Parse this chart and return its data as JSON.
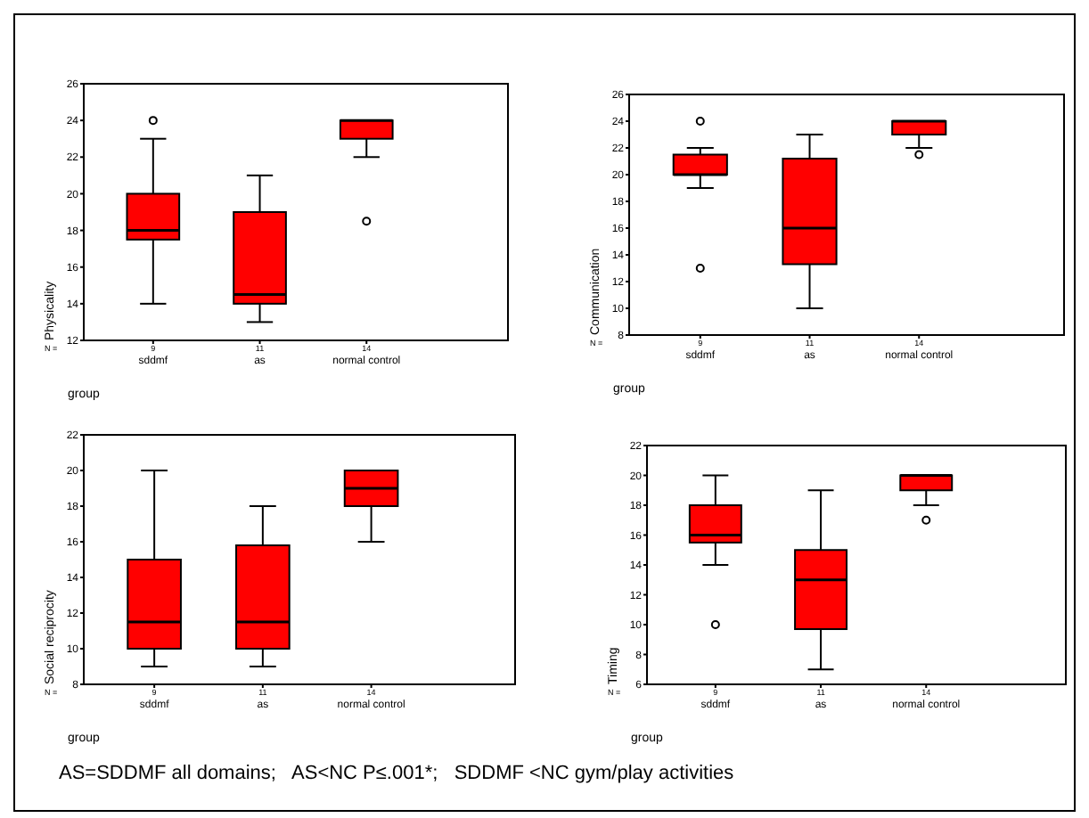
{
  "chart_data": [
    {
      "type": "box",
      "xlabel": "group",
      "ylabel": "Physicality",
      "categories": [
        "sddmf",
        "as",
        "normal control"
      ],
      "color": "#ff0000",
      "ylim": [
        12,
        26
      ],
      "yticks": [
        12,
        14,
        16,
        18,
        20,
        22,
        24,
        26
      ],
      "boxes": [
        {
          "low": 14,
          "q1": 17.5,
          "median": 18,
          "q3": 20,
          "high": 23,
          "outliers": [
            24
          ]
        },
        {
          "low": 13,
          "q1": 14,
          "median": 14.5,
          "q3": 19,
          "high": 21
        },
        {
          "low": 22,
          "q1": 23,
          "median": 24,
          "q3": 24,
          "high": 24,
          "outliers": [
            18.5
          ]
        }
      ],
      "annotations": [
        "N =",
        "9",
        "11",
        "14"
      ]
    },
    {
      "type": "box",
      "xlabel": "group",
      "ylabel": "Communication",
      "categories": [
        "sddmf",
        "as",
        "normal control"
      ],
      "color": "#ff0000",
      "ylim": [
        8,
        26
      ],
      "yticks": [
        8,
        10,
        12,
        14,
        16,
        18,
        20,
        22,
        24,
        26
      ],
      "boxes": [
        {
          "low": 19,
          "q1": 20,
          "median": 20,
          "q3": 21.5,
          "high": 22,
          "outliers": [
            24,
            13
          ]
        },
        {
          "low": 10,
          "q1": 13.3,
          "median": 16,
          "q3": 21.2,
          "high": 23
        },
        {
          "low": 22,
          "q1": 23,
          "median": 24,
          "q3": 24,
          "high": 24,
          "outliers": [
            21.5
          ]
        }
      ],
      "annotations": [
        "N =",
        "9",
        "11",
        "14"
      ]
    },
    {
      "type": "box",
      "xlabel": "group",
      "ylabel": "Social reciprocity",
      "categories": [
        "sddmf",
        "as",
        "normal control"
      ],
      "color": "#ff0000",
      "ylim": [
        8,
        22
      ],
      "yticks": [
        8,
        10,
        12,
        14,
        16,
        18,
        20,
        22
      ],
      "boxes": [
        {
          "low": 9,
          "q1": 10,
          "median": 11.5,
          "q3": 15,
          "high": 20
        },
        {
          "low": 9,
          "q1": 10,
          "median": 11.5,
          "q3": 15.8,
          "high": 18
        },
        {
          "low": 16,
          "q1": 18,
          "median": 19,
          "q3": 20,
          "high": 20
        }
      ],
      "annotations": [
        "N =",
        "9",
        "11",
        "14"
      ]
    },
    {
      "type": "box",
      "xlabel": "group",
      "ylabel": "Timing",
      "categories": [
        "sddmf",
        "as",
        "normal control"
      ],
      "color": "#ff0000",
      "ylim": [
        6,
        22
      ],
      "yticks": [
        6,
        8,
        10,
        12,
        14,
        16,
        18,
        20,
        22
      ],
      "boxes": [
        {
          "low": 14,
          "q1": 15.5,
          "median": 16,
          "q3": 18,
          "high": 20,
          "outliers": [
            10
          ]
        },
        {
          "low": 7,
          "q1": 9.7,
          "median": 13,
          "q3": 15,
          "high": 19
        },
        {
          "low": 18,
          "q1": 19,
          "median": 20,
          "q3": 20,
          "high": 20,
          "outliers": [
            17
          ]
        }
      ],
      "annotations": [
        "N =",
        "9",
        "11",
        "14",
        "AS=SDDMF all domains;   AS<NC P≤.001*;   SDDMF <NC gym/play activities"
      ]
    }
  ]
}
